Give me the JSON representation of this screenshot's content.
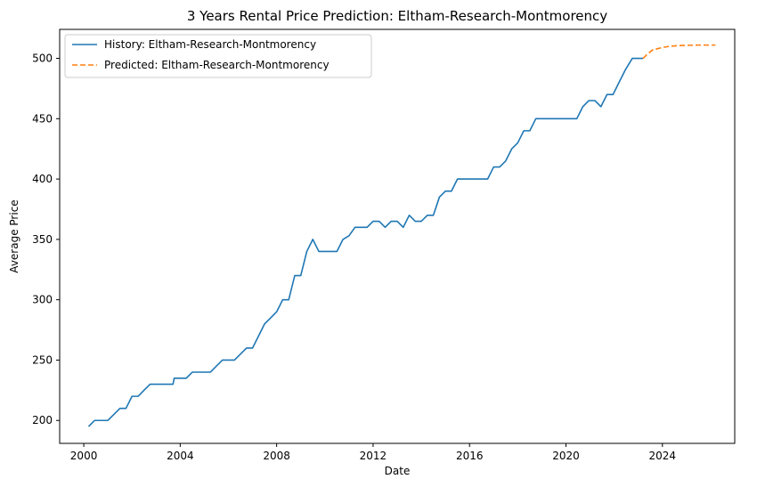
{
  "chart_data": {
    "type": "line",
    "title": "3 Years Rental Price Prediction: Eltham-Research-Montmorency",
    "xlabel": "Date",
    "ylabel": "Average Price",
    "xlim": [
      1999.0,
      2027.0
    ],
    "ylim": [
      181,
      524
    ],
    "x_ticks": [
      {
        "value": 2000,
        "label": "2000"
      },
      {
        "value": 2004,
        "label": "2004"
      },
      {
        "value": 2008,
        "label": "2008"
      },
      {
        "value": 2012,
        "label": "2012"
      },
      {
        "value": 2016,
        "label": "2016"
      },
      {
        "value": 2020,
        "label": "2020"
      },
      {
        "value": 2024,
        "label": "2024"
      }
    ],
    "y_ticks": [
      {
        "value": 200,
        "label": "200"
      },
      {
        "value": 250,
        "label": "250"
      },
      {
        "value": 300,
        "label": "300"
      },
      {
        "value": 350,
        "label": "350"
      },
      {
        "value": 400,
        "label": "400"
      },
      {
        "value": 450,
        "label": "450"
      },
      {
        "value": 500,
        "label": "500"
      }
    ],
    "grid": false,
    "legend_position": "upper-left",
    "series": [
      {
        "name": "History: Eltham-Research-Montmorency",
        "color": "#1f77b4",
        "style": "solid",
        "points": [
          [
            2000.2,
            195
          ],
          [
            2000.45,
            200
          ],
          [
            2000.7,
            200
          ],
          [
            2001.0,
            200
          ],
          [
            2001.25,
            205
          ],
          [
            2001.5,
            210
          ],
          [
            2001.75,
            210
          ],
          [
            2002.0,
            220
          ],
          [
            2002.25,
            220
          ],
          [
            2002.5,
            225
          ],
          [
            2002.75,
            230
          ],
          [
            2003.0,
            230
          ],
          [
            2003.25,
            230
          ],
          [
            2003.5,
            230
          ],
          [
            2003.7,
            230
          ],
          [
            2003.75,
            235
          ],
          [
            2004.0,
            235
          ],
          [
            2004.25,
            235
          ],
          [
            2004.5,
            240
          ],
          [
            2004.75,
            240
          ],
          [
            2005.0,
            240
          ],
          [
            2005.25,
            240
          ],
          [
            2005.5,
            245
          ],
          [
            2005.75,
            250
          ],
          [
            2006.0,
            250
          ],
          [
            2006.25,
            250
          ],
          [
            2006.5,
            255
          ],
          [
            2006.75,
            260
          ],
          [
            2007.0,
            260
          ],
          [
            2007.25,
            270
          ],
          [
            2007.5,
            280
          ],
          [
            2007.75,
            285
          ],
          [
            2008.0,
            290
          ],
          [
            2008.25,
            300
          ],
          [
            2008.5,
            300
          ],
          [
            2008.75,
            320
          ],
          [
            2009.0,
            320
          ],
          [
            2009.25,
            340
          ],
          [
            2009.5,
            350
          ],
          [
            2009.75,
            340
          ],
          [
            2010.0,
            340
          ],
          [
            2010.25,
            340
          ],
          [
            2010.5,
            340
          ],
          [
            2010.75,
            350
          ],
          [
            2011.0,
            353
          ],
          [
            2011.25,
            360
          ],
          [
            2011.5,
            360
          ],
          [
            2011.75,
            360
          ],
          [
            2012.0,
            365
          ],
          [
            2012.25,
            365
          ],
          [
            2012.5,
            360
          ],
          [
            2012.75,
            365
          ],
          [
            2013.0,
            365
          ],
          [
            2013.25,
            360
          ],
          [
            2013.5,
            370
          ],
          [
            2013.75,
            365
          ],
          [
            2014.0,
            365
          ],
          [
            2014.25,
            370
          ],
          [
            2014.5,
            370
          ],
          [
            2014.75,
            385
          ],
          [
            2015.0,
            390
          ],
          [
            2015.25,
            390
          ],
          [
            2015.5,
            400
          ],
          [
            2015.75,
            400
          ],
          [
            2016.0,
            400
          ],
          [
            2016.5,
            400
          ],
          [
            2016.75,
            400
          ],
          [
            2017.0,
            410
          ],
          [
            2017.25,
            410
          ],
          [
            2017.5,
            415
          ],
          [
            2017.75,
            425
          ],
          [
            2018.0,
            430
          ],
          [
            2018.25,
            440
          ],
          [
            2018.5,
            440
          ],
          [
            2018.75,
            450
          ],
          [
            2019.0,
            450
          ],
          [
            2019.5,
            450
          ],
          [
            2020.0,
            450
          ],
          [
            2020.45,
            450
          ],
          [
            2020.7,
            460
          ],
          [
            2020.95,
            465
          ],
          [
            2021.2,
            465
          ],
          [
            2021.45,
            460
          ],
          [
            2021.7,
            470
          ],
          [
            2021.95,
            470
          ],
          [
            2022.2,
            480
          ],
          [
            2022.45,
            490
          ],
          [
            2022.75,
            500
          ],
          [
            2023.0,
            500
          ],
          [
            2023.2,
            500
          ]
        ]
      },
      {
        "name": "Predicted: Eltham-Research-Montmorency",
        "color": "#ff7f0e",
        "style": "dashed",
        "points": [
          [
            2023.2,
            500
          ],
          [
            2023.4,
            504
          ],
          [
            2023.6,
            507
          ],
          [
            2023.8,
            508
          ],
          [
            2024.0,
            509
          ],
          [
            2024.3,
            510
          ],
          [
            2024.6,
            510.5
          ],
          [
            2025.0,
            510.8
          ],
          [
            2025.5,
            511
          ],
          [
            2026.0,
            511
          ],
          [
            2026.2,
            511
          ]
        ]
      }
    ]
  }
}
